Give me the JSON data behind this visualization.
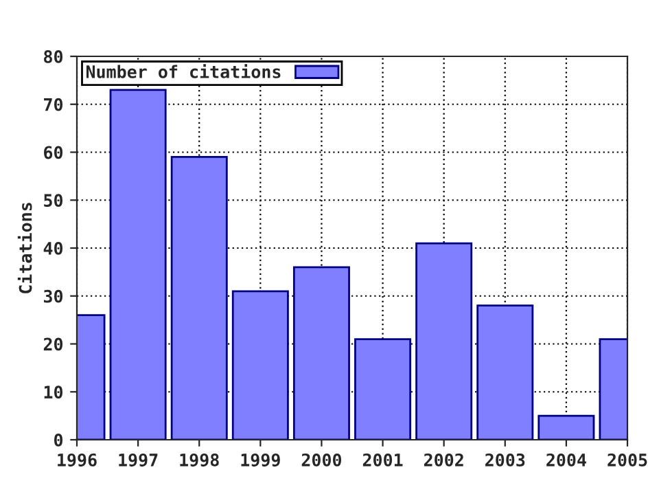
{
  "chart_data": {
    "type": "bar",
    "ylabel": "Citations",
    "x": [
      1996,
      1997,
      1998,
      1999,
      2000,
      2001,
      2002,
      2003,
      2004,
      2005
    ],
    "series": [
      {
        "name": "Number of citations",
        "color": "#7f7fff",
        "values": [
          26,
          73,
          59,
          31,
          36,
          21,
          41,
          28,
          5,
          21
        ]
      }
    ],
    "xlim": [
      1996,
      2005
    ],
    "xticks": [
      1996,
      1997,
      1998,
      1999,
      2000,
      2001,
      2002,
      2003,
      2004,
      2005
    ],
    "ylim": [
      0,
      80
    ],
    "yticks": [
      0,
      10,
      20,
      30,
      40,
      50,
      60,
      70,
      80
    ],
    "grid": true,
    "legend": "top left"
  }
}
